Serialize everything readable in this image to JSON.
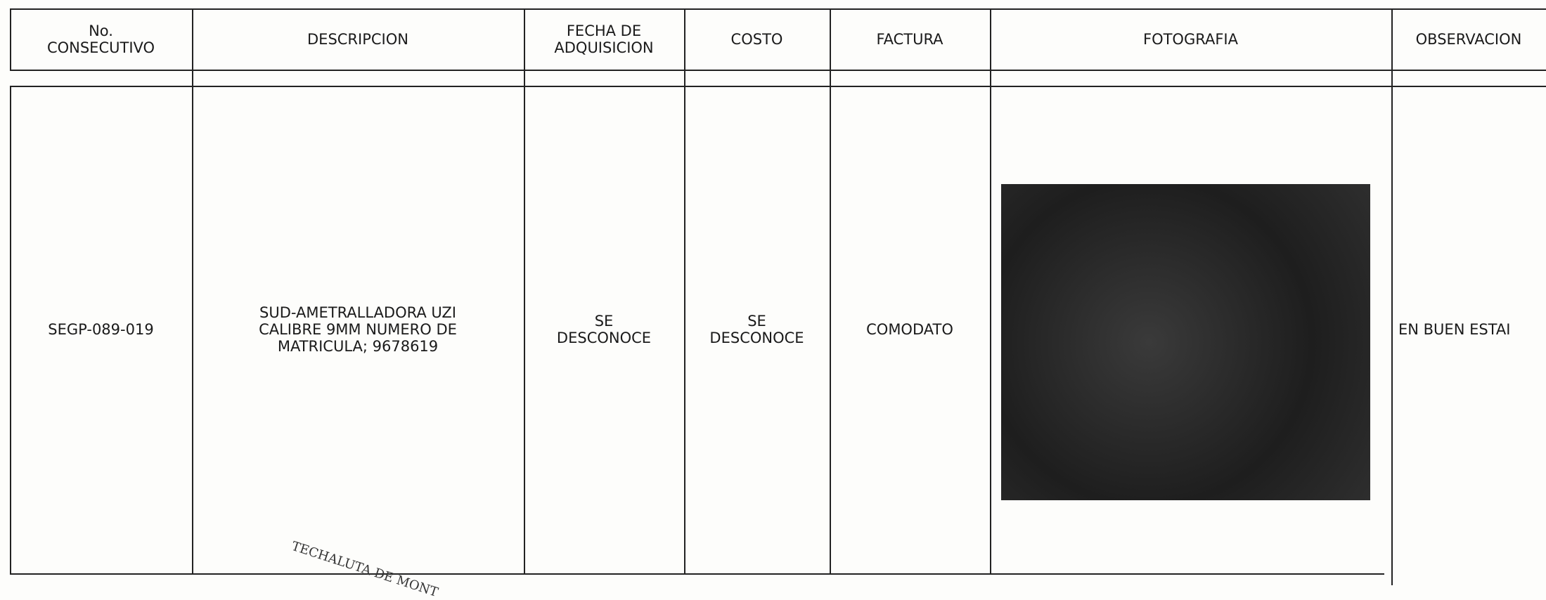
{
  "table": {
    "headers": [
      [
        "No.",
        "CONSECUTIVO"
      ],
      [
        "DESCRIPCION"
      ],
      [
        "FECHA DE",
        "ADQUISICION"
      ],
      [
        "COSTO"
      ],
      [
        "FACTURA"
      ],
      [
        "FOTOGRAFIA"
      ],
      [
        "OBSERVACION"
      ]
    ],
    "row": {
      "consecutivo": [
        "SEGP-089-019"
      ],
      "descripcion": [
        "SUD-AMETRALLADORA UZI",
        "CALIBRE 9MM NUMERO DE",
        "MATRICULA; 9678619"
      ],
      "fecha": [
        "SE",
        "DESCONOCE"
      ],
      "costo": [
        "SE",
        "DESCONOCE"
      ],
      "factura": [
        "COMODATO"
      ],
      "observacion": [
        "EN BUEN ESTAI"
      ]
    }
  },
  "stamp": "TECHALUTA DE MONT"
}
